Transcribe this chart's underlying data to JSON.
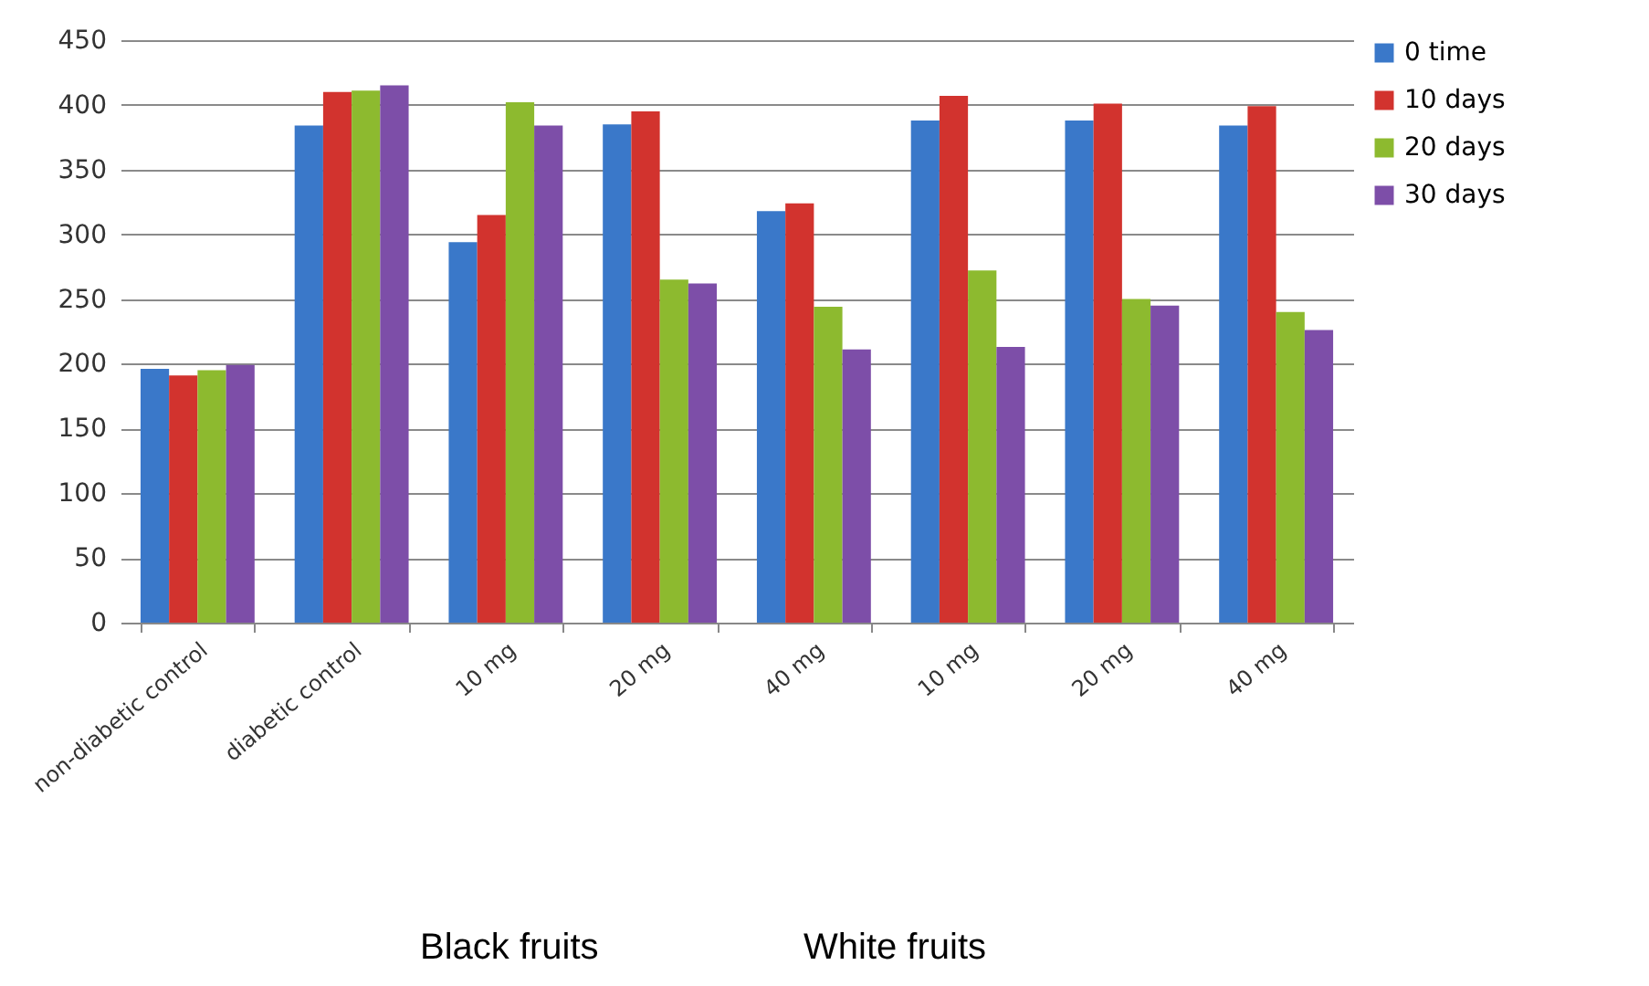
{
  "chart_data": {
    "type": "bar",
    "categories": [
      "non-diabetic control",
      "diabetic control",
      "10 mg",
      "20 mg",
      "40 mg",
      "10 mg",
      "20 mg",
      "40 mg"
    ],
    "series": [
      {
        "name": "0 time",
        "color": "#3a78c9",
        "values": [
          196,
          384,
          294,
          385,
          318,
          388,
          388,
          384
        ]
      },
      {
        "name": "10 days",
        "color": "#d2332e",
        "values": [
          191,
          410,
          315,
          395,
          324,
          407,
          401,
          399
        ]
      },
      {
        "name": "20 days",
        "color": "#8dba2f",
        "values": [
          195,
          411,
          402,
          265,
          244,
          272,
          250,
          240
        ]
      },
      {
        "name": "30 days",
        "color": "#7d4ea8",
        "values": [
          199,
          415,
          384,
          262,
          211,
          213,
          245,
          226
        ]
      }
    ],
    "ylim": [
      0,
      450
    ],
    "yticks": [
      0,
      50,
      100,
      150,
      200,
      250,
      300,
      350,
      400,
      450
    ],
    "grid": "y",
    "legend": "right",
    "annotations": [
      "Black fruits",
      "White fruits"
    ]
  }
}
